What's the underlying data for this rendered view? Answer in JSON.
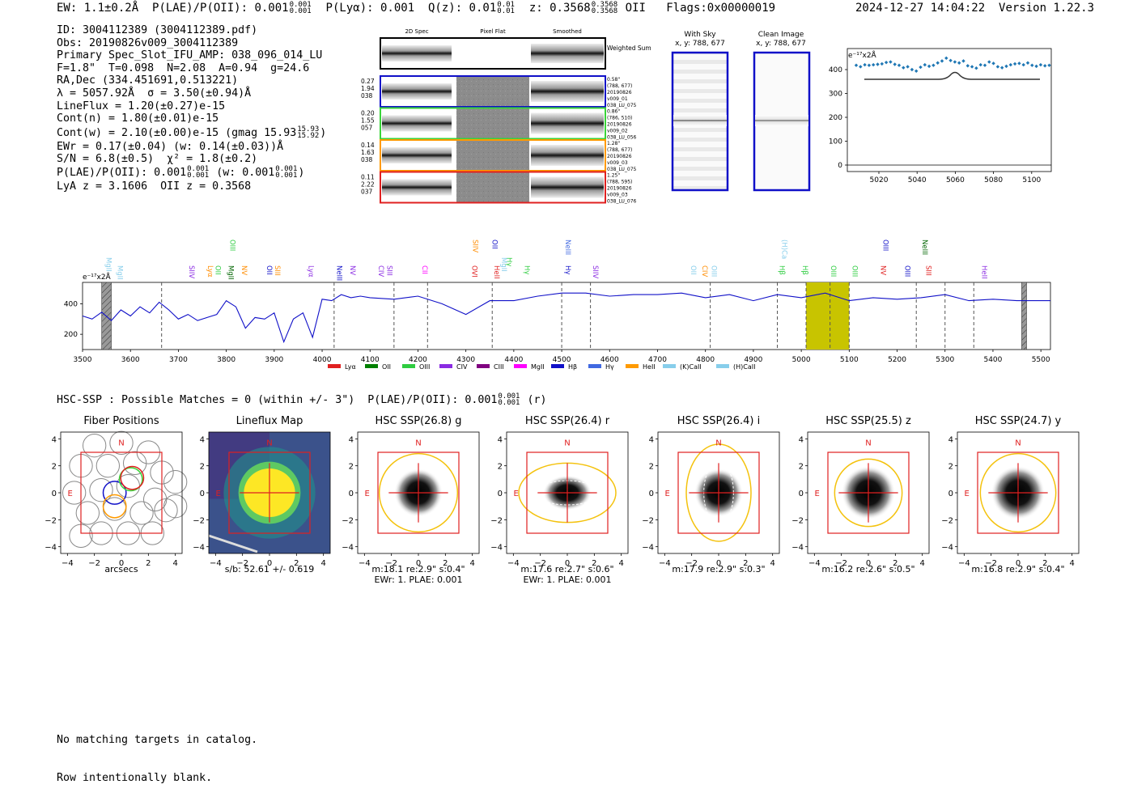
{
  "header": {
    "ew": "EW: 1.1±0.2Å",
    "plae_label": "P(LAE)/P(OII): 0.001",
    "plae_hi": "0.001",
    "plae_lo": "0.001",
    "plya": "P(Lyα): 0.001",
    "qz_label": "Q(z): 0.01",
    "qz_hi": "0.01",
    "qz_lo": "0.01",
    "z_label": "z: 0.3568",
    "z_hi": "0.3568",
    "z_lo": "0.3568",
    "z_line": "OII",
    "flags": "Flags:0x00000019",
    "timestamp": "2024-12-27 14:04:22",
    "version": "Version 1.22.3"
  },
  "info": {
    "id": "ID: 3004112389 (3004112389.pdf)",
    "obs": "Obs: 20190826v009_3004112389",
    "slot": "Primary Spec_Slot_IFU_AMP: 038_096_014_LU",
    "fit": "F=1.8\"  T=0.098  N=2.08  A=0.94  g=24.6",
    "radec": "RA,Dec (334.451691,0.513221)",
    "lambda": "λ = 5057.92Å  σ = 3.50(±0.94)Å",
    "lineflux": "LineFlux = 1.20(±0.27)e-15",
    "contn": "Cont(n) = 1.80(±0.01)e-15",
    "contw": "Cont(w) = 2.10(±0.00)e-15 (gmag 15.93",
    "contw_hi": "15.93",
    "contw_lo": "15.92",
    "ewr": "EWr = 0.17(±0.04) (w: 0.14(±0.03))Å",
    "sn": "S/N = 6.8(±0.5)  χ² = 1.8(±0.2)",
    "plae": "P(LAE)/P(OII): 0.001",
    "plae_hi": "0.001",
    "plae_lo": "0.001",
    "plae_w": "(w: 0.001",
    "plae_w_hi": "0.001",
    "plae_w_lo": "0.001",
    "lya": "LyA z = 3.1606  OII z = 0.3568"
  },
  "spec2d": {
    "col_headers": [
      "2D Spec",
      "Pixel Flat",
      "Smoothed"
    ],
    "sum_label": "Weighted Sum",
    "rows": [
      {
        "left": [
          "0.27",
          "1.94",
          "038"
        ],
        "right": [
          "0.58\"",
          "(788, 677)",
          "20190826",
          "v009_01",
          "038_LU_075"
        ],
        "color": "#1010c8"
      },
      {
        "left": [
          "0.20",
          "1.55",
          "057"
        ],
        "right": [
          "0.86\"",
          "(786, 510)",
          "20190826",
          "v009_02",
          "038_LU_056"
        ],
        "color": "#3ad43a"
      },
      {
        "left": [
          "0.14",
          "1.63",
          "038"
        ],
        "right": [
          "1.28\"",
          "(788, 677)",
          "20190826",
          "v009_03",
          "038_LU_075"
        ],
        "color": "#ff9a00"
      },
      {
        "left": [
          "0.11",
          "2.22",
          "037"
        ],
        "right": [
          "1.25\"",
          "(788, 595)",
          "20190826",
          "v009_03",
          "038_LU_076"
        ],
        "color": "#e02020"
      }
    ]
  },
  "panels": {
    "with_sky_title": "With Sky",
    "with_sky_xy": "x, y: 788, 677",
    "clean_title": "Clean Image",
    "clean_xy": "x, y: 788, 677"
  },
  "zoom_chart": {
    "unit": "e⁻¹⁷x2Å",
    "y_ticks": [
      "400",
      "300",
      "200",
      "100",
      "0"
    ],
    "x_ticks": [
      "5020",
      "5040",
      "5060",
      "5080",
      "5100"
    ]
  },
  "chart_data": {
    "type": "line",
    "title": "",
    "xlabel": "",
    "ylabel": "e⁻¹⁷x2Å",
    "xlim": [
      3500,
      5520
    ],
    "ylim": [
      100,
      540
    ],
    "x_ticks": [
      3500,
      3600,
      3700,
      3800,
      3900,
      4000,
      4100,
      4200,
      4300,
      4400,
      4500,
      4600,
      4700,
      4800,
      4900,
      5000,
      5100,
      5200,
      5300,
      5400,
      5500
    ],
    "y_ticks": [
      200,
      400
    ],
    "x": [
      3500,
      3520,
      3540,
      3560,
      3580,
      3600,
      3620,
      3640,
      3660,
      3680,
      3700,
      3720,
      3740,
      3760,
      3780,
      3800,
      3820,
      3840,
      3860,
      3880,
      3900,
      3920,
      3940,
      3960,
      3980,
      4000,
      4020,
      4040,
      4060,
      4080,
      4100,
      4150,
      4200,
      4250,
      4300,
      4350,
      4400,
      4450,
      4500,
      4550,
      4600,
      4650,
      4700,
      4750,
      4800,
      4850,
      4900,
      4950,
      5000,
      5050,
      5100,
      5150,
      5200,
      5250,
      5300,
      5350,
      5400,
      5450,
      5500,
      5520
    ],
    "y": [
      320,
      300,
      345,
      290,
      360,
      320,
      380,
      340,
      410,
      360,
      300,
      330,
      290,
      310,
      330,
      420,
      380,
      240,
      310,
      300,
      340,
      150,
      300,
      340,
      180,
      430,
      420,
      460,
      440,
      450,
      440,
      430,
      450,
      400,
      330,
      420,
      420,
      450,
      470,
      470,
      450,
      460,
      460,
      470,
      440,
      460,
      420,
      460,
      440,
      470,
      420,
      440,
      430,
      440,
      460,
      420,
      430,
      420,
      420,
      420
    ],
    "series_name": "spectrum",
    "line_ids": [
      {
        "x": 3545,
        "label": "MgII",
        "color": "#87ceeb",
        "row": 2
      },
      {
        "x": 3568,
        "label": "MgII",
        "color": "#87ceeb",
        "row": 1
      },
      {
        "x": 3718,
        "label": "SIIV",
        "color": "#8a2be2",
        "row": 1
      },
      {
        "x": 3757,
        "label": "Lyα",
        "color": "#ff8c00",
        "row": 1
      },
      {
        "x": 3773,
        "label": "OII",
        "color": "#2ecc40",
        "row": 1
      },
      {
        "x": 3800,
        "label": "MgII",
        "color": "#006400",
        "row": 1
      },
      {
        "x": 3803,
        "label": "OIII",
        "color": "#2ecc40",
        "row": 3
      },
      {
        "x": 3828,
        "label": "NV",
        "color": "#ff8c00",
        "row": 1
      },
      {
        "x": 3880,
        "label": "OII",
        "color": "#1010c8",
        "row": 1
      },
      {
        "x": 3897,
        "label": "SIII",
        "color": "#ff8c00",
        "row": 1
      },
      {
        "x": 3967,
        "label": "Lyα",
        "color": "#8a2be2",
        "row": 1
      },
      {
        "x": 4026,
        "label": "NeIII",
        "color": "#1010c8",
        "row": 1
      },
      {
        "x": 4054,
        "label": "NV",
        "color": "#8a2be2",
        "row": 1
      },
      {
        "x": 4113,
        "label": "CIV",
        "color": "#8a2be2",
        "row": 1
      },
      {
        "x": 4131,
        "label": "SIII",
        "color": "#8a2be2",
        "row": 1
      },
      {
        "x": 4204,
        "label": "CII",
        "color": "#ff00ff",
        "row": 1
      },
      {
        "x": 4308,
        "label": "OVI",
        "color": "#e02020",
        "row": 1
      },
      {
        "x": 4310,
        "label": "SIIV",
        "color": "#ff8c00",
        "row": 3
      },
      {
        "x": 4350,
        "label": "OII",
        "color": "#1010c8",
        "row": 3
      },
      {
        "x": 4355,
        "label": "HeII",
        "color": "#e02020",
        "row": 1
      },
      {
        "x": 4370,
        "label": "MgII",
        "color": "#87ceeb",
        "row": 2
      },
      {
        "x": 4381,
        "label": "Hγ",
        "color": "#2ecc40",
        "row": 2
      },
      {
        "x": 4418,
        "label": "Hγ",
        "color": "#2ecc40",
        "row": 1
      },
      {
        "x": 4503,
        "label": "Hγ",
        "color": "#1010c8",
        "row": 1
      },
      {
        "x": 4503,
        "label": "NeIII",
        "color": "#4169e1",
        "row": 3
      },
      {
        "x": 4561,
        "label": "SIIV",
        "color": "#8a2be2",
        "row": 1
      },
      {
        "x": 4765,
        "label": "OII",
        "color": "#87ceeb",
        "row": 1
      },
      {
        "x": 4789,
        "label": "CIV",
        "color": "#ff8c00",
        "row": 1
      },
      {
        "x": 4808,
        "label": "OIII",
        "color": "#87ceeb",
        "row": 1
      },
      {
        "x": 4950,
        "label": "Hβ",
        "color": "#2ecc40",
        "row": 1
      },
      {
        "x": 4955,
        "label": "(H)Ca",
        "color": "#87ceeb",
        "row": 3
      },
      {
        "x": 4998,
        "label": "Hβ",
        "color": "#2ecc40",
        "row": 1
      },
      {
        "x": 5057,
        "label": "OIII",
        "color": "#2ecc40",
        "row": 1
      },
      {
        "x": 5102,
        "label": "OIII",
        "color": "#2ecc40",
        "row": 1
      },
      {
        "x": 5161,
        "label": "NV",
        "color": "#e02020",
        "row": 1
      },
      {
        "x": 5166,
        "label": "OIII",
        "color": "#1010c8",
        "row": 3
      },
      {
        "x": 5212,
        "label": "OIII",
        "color": "#1010c8",
        "row": 1
      },
      {
        "x": 5248,
        "label": "NeIII",
        "color": "#006400",
        "row": 3
      },
      {
        "x": 5256,
        "label": "SIII",
        "color": "#e02020",
        "row": 1
      },
      {
        "x": 5372,
        "label": "HeII",
        "color": "#8a2be2",
        "row": 1
      }
    ],
    "dashed_x": [
      3665,
      4025,
      4150,
      4220,
      4355,
      4500,
      4560,
      4810,
      4950,
      5010,
      5060,
      5100,
      5240,
      5300,
      5360
    ],
    "highlight": {
      "x0": 5010,
      "x1": 5100,
      "color": "#c8c400"
    },
    "hatched": [
      {
        "x0": 3540,
        "x1": 3560
      },
      {
        "x0": 5460,
        "x1": 5470
      }
    ],
    "legend": [
      {
        "label": "Lyα",
        "color": "#e02020"
      },
      {
        "label": "OII",
        "color": "#008000"
      },
      {
        "label": "OIII",
        "color": "#2ecc40"
      },
      {
        "label": "CIV",
        "color": "#8a2be2"
      },
      {
        "label": "CIII",
        "color": "#800080"
      },
      {
        "label": "MgII",
        "color": "#ff00ff"
      },
      {
        "label": "Hβ",
        "color": "#1010c8"
      },
      {
        "label": "Hγ",
        "color": "#4169e1"
      },
      {
        "label": "HeII",
        "color": "#ff9a00"
      },
      {
        "label": "(K)CaII",
        "color": "#87ceeb"
      },
      {
        "label": "(H)CaII",
        "color": "#87ceeb"
      }
    ]
  },
  "hsc": {
    "summary": "HSC-SSP : Possible Matches = 0 (within +/- 3\")  P(LAE)/P(OII): 0.001",
    "summary_hi": "0.001",
    "summary_lo": "0.001",
    "summary_band": "(r)",
    "cutouts": [
      {
        "title": "Fiber Positions",
        "caption1": "arcsecs",
        "caption2": ""
      },
      {
        "title": "Lineflux Map",
        "caption1": "s/b: 52.61 +/- 0.619",
        "caption2": ""
      },
      {
        "title": "HSC SSP(26.8) g",
        "caption1": "m:18.1  re:2.9\"  s:0.4\"",
        "caption2": "EWr: 1. PLAE: 0.001"
      },
      {
        "title": "HSC SSP(26.4) r",
        "caption1": "m:17.6  re:2.7\"  s:0.6\"",
        "caption2": "EWr: 1. PLAE: 0.001"
      },
      {
        "title": "HSC SSP(26.4) i",
        "caption1": "m:17.9  re:2.9\"  s:0.3\"",
        "caption2": ""
      },
      {
        "title": "HSC SSP(25.5) z",
        "caption1": "m:16.2  re:2.6\"  s:0.5\"",
        "caption2": ""
      },
      {
        "title": "HSC SSP(24.7) y",
        "caption1": "m:16.8  re:2.9\"  s:0.4\"",
        "caption2": ""
      }
    ],
    "axis_ticks": [
      "4",
      "2",
      "0",
      "−2",
      "−4"
    ],
    "x_ticks": [
      "−4",
      "−2",
      "0",
      "2",
      "4"
    ],
    "north": "N",
    "east": "E"
  },
  "footer": {
    "line1": "No matching targets in catalog.",
    "line2": "Row intentionally blank."
  }
}
